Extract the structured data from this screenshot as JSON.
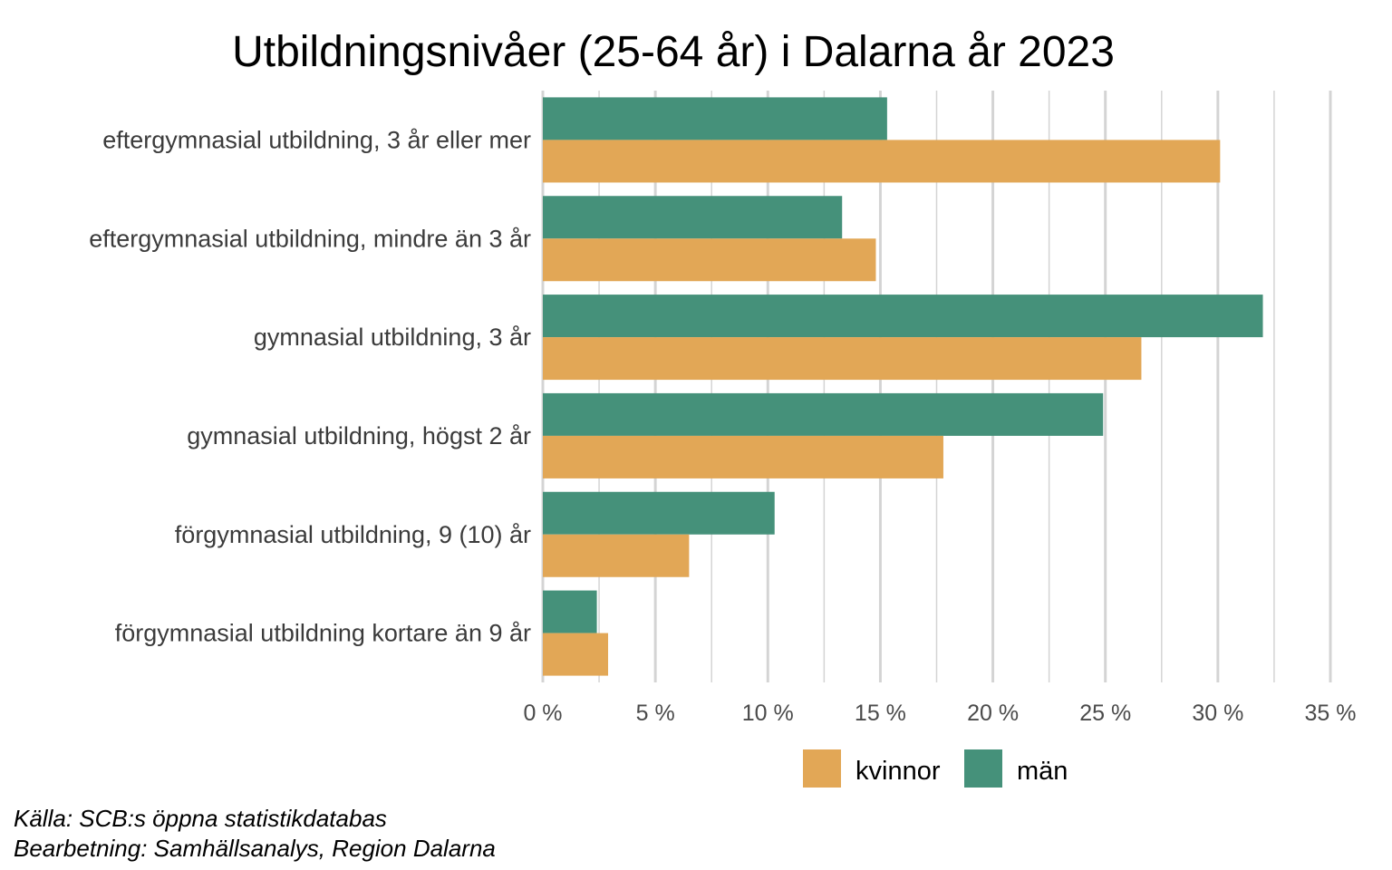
{
  "chart_data": {
    "type": "bar",
    "orientation": "horizontal",
    "title": "Utbildningsnivåer (25-64 år) i Dalarna år 2023",
    "categories": [
      "eftergymnasial utbildning, 3 år eller mer",
      "eftergymnasial utbildning, mindre än 3 år",
      "gymnasial utbildning, 3 år",
      "gymnasial utbildning, högst 2 år",
      "förgymnasial utbildning, 9 (10) år",
      "förgymnasial utbildning kortare än 9 år"
    ],
    "series": [
      {
        "name": "män",
        "color": "#45917a",
        "values": [
          15.3,
          13.3,
          32.0,
          24.9,
          10.3,
          2.4
        ]
      },
      {
        "name": "kvinnor",
        "color": "#e2a756",
        "values": [
          30.1,
          14.8,
          26.6,
          17.8,
          6.5,
          2.9
        ]
      }
    ],
    "xlim": [
      0,
      35
    ],
    "x_ticks": [
      0,
      5,
      10,
      15,
      20,
      25,
      30,
      35
    ],
    "x_tick_labels": [
      "0 %",
      "5 %",
      "10 %",
      "15 %",
      "20 %",
      "25 %",
      "30 %",
      "35 %"
    ],
    "xlabel": "",
    "ylabel": "",
    "grid": "vertical",
    "legend": {
      "position": "bottom",
      "order": [
        "kvinnor",
        "män"
      ]
    }
  },
  "caption": {
    "source": "Källa: SCB:s öppna statistikdatabas",
    "processing": "Bearbetning: Samhällsanalys, Region Dalarna"
  }
}
